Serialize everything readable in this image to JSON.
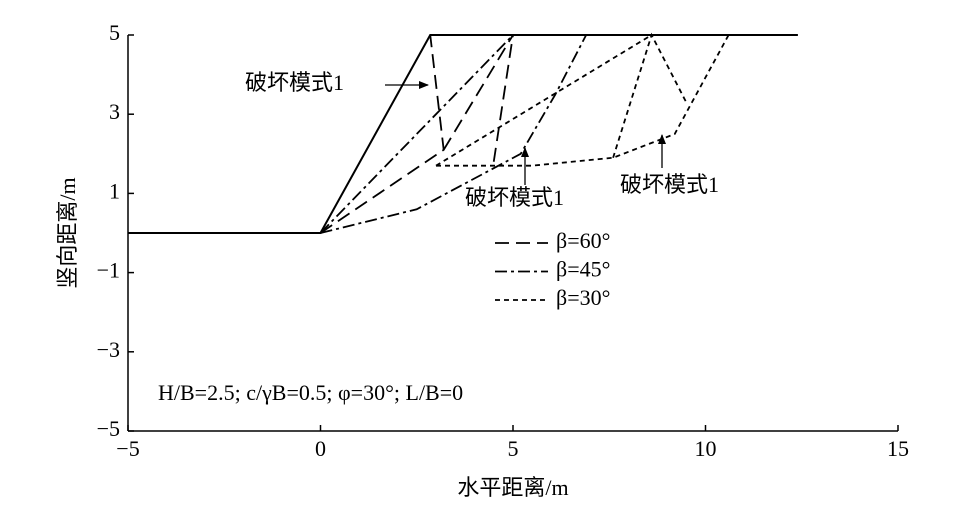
{
  "chart_data": {
    "type": "line",
    "x_label": "水平距离/m",
    "y_label": "竖向距离/m",
    "xlim": [
      -5,
      15
    ],
    "xticks": [
      {
        "value": -5,
        "label": "−5"
      },
      0,
      5,
      10,
      15
    ],
    "ylim": [
      -5,
      5
    ],
    "yticks": [
      5,
      3,
      1,
      {
        "value": -1,
        "label": "−1"
      },
      {
        "value": -3,
        "label": "−3"
      },
      {
        "value": -5,
        "label": "−5"
      }
    ],
    "series": [
      {
        "color": "#000000",
        "linestyle": "solid",
        "x": [
          -5,
          0,
          2.85,
          12.4
        ],
        "values": [
          0,
          0,
          5,
          5
        ]
      },
      {
        "name": "β=60°",
        "color": "#000000",
        "linestyle": "dashed",
        "x": [
          0,
          3.2,
          2.85,
          null,
          3.2,
          5.0,
          null,
          4.5,
          5.0
        ],
        "values": [
          0,
          2.1,
          5,
          null,
          2.1,
          5,
          null,
          1.8,
          5
        ]
      },
      {
        "name": "β=45°",
        "color": "#000000",
        "linestyle": "dashdot",
        "x": [
          0,
          5.0,
          null,
          0,
          2.5,
          5.2,
          6.1,
          6.9
        ],
        "values": [
          0,
          5,
          null,
          0,
          0.6,
          2.0,
          3.5,
          5
        ]
      },
      {
        "name": "β=30°",
        "color": "#000000",
        "linestyle": "shortdash",
        "x": [
          3.0,
          5.5,
          7.6,
          9.2,
          10.6,
          null,
          7.6,
          8.6,
          9.5,
          null,
          3.0,
          8.6
        ],
        "values": [
          1.7,
          1.7,
          1.9,
          2.5,
          5,
          null,
          1.9,
          5,
          3.3,
          null,
          1.7,
          5
        ]
      }
    ],
    "annotations": [
      "破坏模式1",
      "破坏模式1",
      "破坏模式1",
      "H/B=2.5; c/γB=0.5; φ=30°; L/B=0"
    ]
  }
}
